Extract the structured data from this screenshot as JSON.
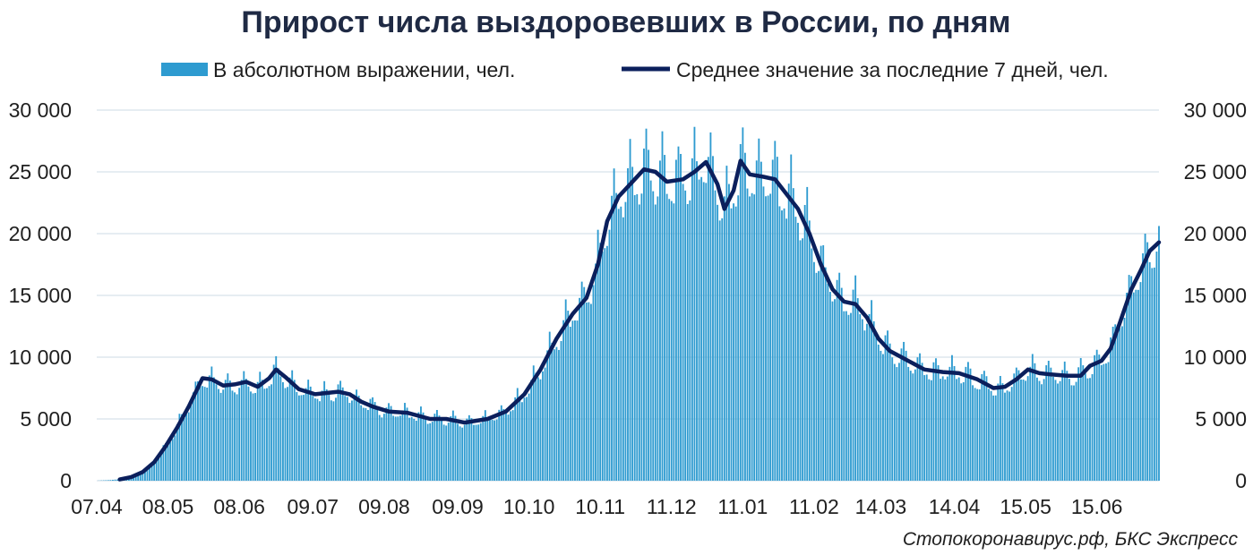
{
  "chart_data": {
    "type": "bar",
    "title": "Прирост числа выздоровевших в России, по дням",
    "source": "Стопокоронавирус.рф, БКС Экспресс",
    "legend_position": "top",
    "grid": true,
    "colors": {
      "bars": "#2e9bd0",
      "line": "#0b1f5c",
      "grid": "#d6e2ea",
      "title": "#1f2a44"
    },
    "ylim": [
      0,
      30000
    ],
    "y_ticks": [
      "0",
      "5 000",
      "10 000",
      "15 000",
      "20 000",
      "25 000",
      "30 000"
    ],
    "y_tick_values": [
      0,
      5000,
      10000,
      15000,
      20000,
      25000,
      30000
    ],
    "x_tick_labels": [
      "07.04",
      "08.05",
      "08.06",
      "09.07",
      "09.08",
      "09.09",
      "10.10",
      "10.11",
      "11.12",
      "11.01",
      "11.02",
      "14.03",
      "14.04",
      "15.05",
      "15.06"
    ],
    "x_tick_day_index": [
      0,
      31,
      62,
      94,
      125,
      157,
      188,
      219,
      250,
      281,
      312,
      341,
      373,
      404,
      435
    ],
    "total_days": 462,
    "series": [
      {
        "name": "В абсолютном выражении, чел.",
        "type": "bar",
        "anchors": [
          [
            0,
            0
          ],
          [
            10,
            100
          ],
          [
            15,
            300
          ],
          [
            20,
            700
          ],
          [
            25,
            1500
          ],
          [
            30,
            2800
          ],
          [
            35,
            4300
          ],
          [
            40,
            6000
          ],
          [
            46,
            8300
          ],
          [
            50,
            8200
          ],
          [
            55,
            7700
          ],
          [
            60,
            7800
          ],
          [
            65,
            8000
          ],
          [
            70,
            7600
          ],
          [
            75,
            8300
          ],
          [
            78,
            9000
          ],
          [
            82,
            8400
          ],
          [
            88,
            7400
          ],
          [
            95,
            7000
          ],
          [
            100,
            7100
          ],
          [
            105,
            7200
          ],
          [
            110,
            7000
          ],
          [
            115,
            6400
          ],
          [
            120,
            6000
          ],
          [
            127,
            5600
          ],
          [
            135,
            5500
          ],
          [
            145,
            5000
          ],
          [
            152,
            5000
          ],
          [
            160,
            4700
          ],
          [
            170,
            5000
          ],
          [
            178,
            5600
          ],
          [
            186,
            7000
          ],
          [
            193,
            9000
          ],
          [
            200,
            11500
          ],
          [
            207,
            13500
          ],
          [
            213,
            14800
          ],
          [
            218,
            17500
          ],
          [
            222,
            21000
          ],
          [
            227,
            23000
          ],
          [
            232,
            24000
          ],
          [
            238,
            25200
          ],
          [
            243,
            25000
          ],
          [
            248,
            24200
          ],
          [
            255,
            24400
          ],
          [
            260,
            25000
          ],
          [
            265,
            25800
          ],
          [
            270,
            24000
          ],
          [
            273,
            22000
          ],
          [
            277,
            23500
          ],
          [
            280,
            25900
          ],
          [
            284,
            24800
          ],
          [
            290,
            24600
          ],
          [
            295,
            24400
          ],
          [
            300,
            23200
          ],
          [
            305,
            22000
          ],
          [
            310,
            20000
          ],
          [
            315,
            17500
          ],
          [
            320,
            15500
          ],
          [
            325,
            14500
          ],
          [
            330,
            14300
          ],
          [
            335,
            13200
          ],
          [
            340,
            11500
          ],
          [
            345,
            10500
          ],
          [
            350,
            10000
          ],
          [
            355,
            9500
          ],
          [
            360,
            9000
          ],
          [
            368,
            8800
          ],
          [
            375,
            8700
          ],
          [
            383,
            8200
          ],
          [
            390,
            7500
          ],
          [
            395,
            7600
          ],
          [
            400,
            8200
          ],
          [
            405,
            9000
          ],
          [
            410,
            8700
          ],
          [
            415,
            8600
          ],
          [
            422,
            8500
          ],
          [
            428,
            8500
          ],
          [
            432,
            9300
          ],
          [
            437,
            9700
          ],
          [
            441,
            10700
          ],
          [
            445,
            12800
          ],
          [
            450,
            15500
          ],
          [
            454,
            17000
          ],
          [
            458,
            18600
          ],
          [
            462,
            19500
          ]
        ],
        "noise_amplitude": 0.14
      },
      {
        "name": "Среднее значение за последние 7 дней, чел.",
        "type": "line",
        "points": [
          [
            10,
            100
          ],
          [
            15,
            300
          ],
          [
            20,
            700
          ],
          [
            25,
            1500
          ],
          [
            30,
            2800
          ],
          [
            35,
            4300
          ],
          [
            40,
            6000
          ],
          [
            46,
            8300
          ],
          [
            50,
            8200
          ],
          [
            55,
            7700
          ],
          [
            60,
            7800
          ],
          [
            65,
            8000
          ],
          [
            70,
            7600
          ],
          [
            75,
            8300
          ],
          [
            78,
            9000
          ],
          [
            82,
            8400
          ],
          [
            88,
            7400
          ],
          [
            95,
            7000
          ],
          [
            100,
            7100
          ],
          [
            105,
            7200
          ],
          [
            110,
            7000
          ],
          [
            115,
            6400
          ],
          [
            120,
            6000
          ],
          [
            127,
            5600
          ],
          [
            135,
            5500
          ],
          [
            145,
            5000
          ],
          [
            152,
            5000
          ],
          [
            160,
            4700
          ],
          [
            170,
            5000
          ],
          [
            178,
            5600
          ],
          [
            186,
            7000
          ],
          [
            193,
            9000
          ],
          [
            200,
            11500
          ],
          [
            207,
            13500
          ],
          [
            213,
            14800
          ],
          [
            218,
            17500
          ],
          [
            222,
            21000
          ],
          [
            227,
            23000
          ],
          [
            232,
            24000
          ],
          [
            238,
            25200
          ],
          [
            243,
            25000
          ],
          [
            248,
            24200
          ],
          [
            255,
            24400
          ],
          [
            260,
            25000
          ],
          [
            265,
            25800
          ],
          [
            270,
            24000
          ],
          [
            273,
            22000
          ],
          [
            277,
            23500
          ],
          [
            280,
            25900
          ],
          [
            284,
            24800
          ],
          [
            290,
            24600
          ],
          [
            295,
            24400
          ],
          [
            300,
            23200
          ],
          [
            305,
            22000
          ],
          [
            310,
            20000
          ],
          [
            315,
            17500
          ],
          [
            320,
            15500
          ],
          [
            325,
            14500
          ],
          [
            330,
            14300
          ],
          [
            335,
            13200
          ],
          [
            340,
            11500
          ],
          [
            345,
            10500
          ],
          [
            350,
            10000
          ],
          [
            355,
            9500
          ],
          [
            360,
            9000
          ],
          [
            368,
            8800
          ],
          [
            375,
            8700
          ],
          [
            383,
            8200
          ],
          [
            390,
            7500
          ],
          [
            395,
            7600
          ],
          [
            400,
            8200
          ],
          [
            405,
            9000
          ],
          [
            410,
            8700
          ],
          [
            415,
            8600
          ],
          [
            422,
            8500
          ],
          [
            428,
            8500
          ],
          [
            432,
            9300
          ],
          [
            437,
            9700
          ],
          [
            441,
            10700
          ],
          [
            445,
            12800
          ],
          [
            450,
            15500
          ],
          [
            454,
            17000
          ],
          [
            458,
            18600
          ],
          [
            462,
            19300
          ]
        ]
      }
    ]
  }
}
